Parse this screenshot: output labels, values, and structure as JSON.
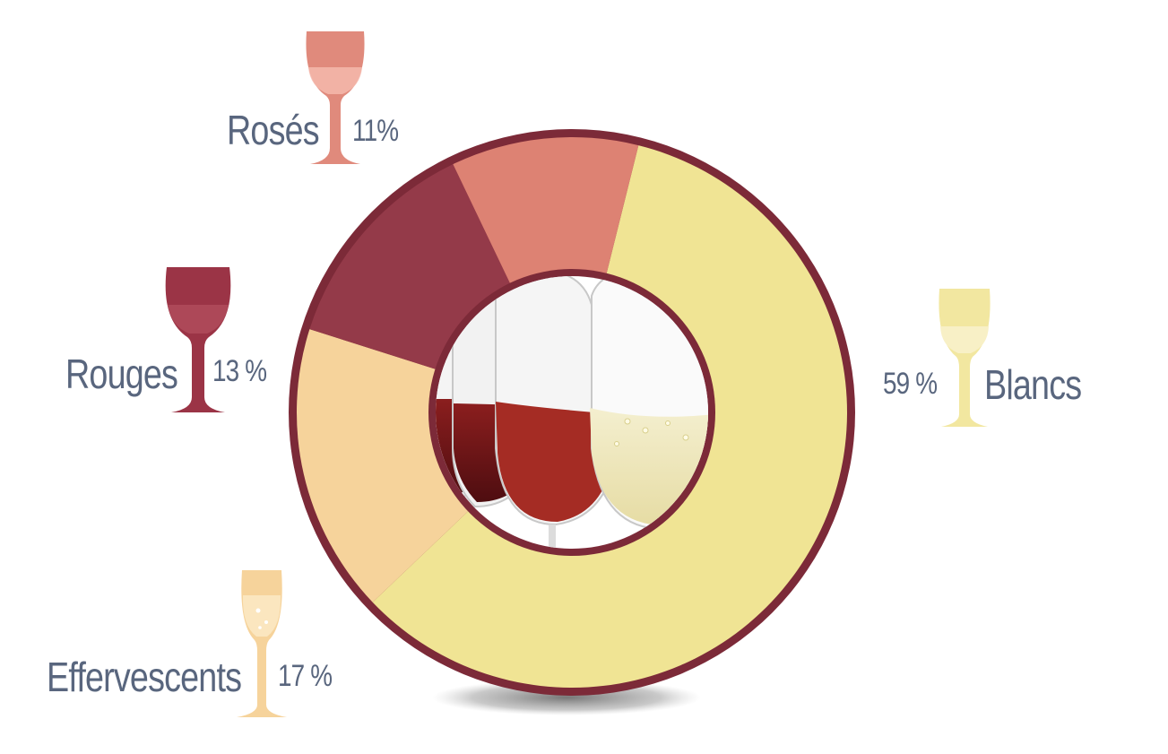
{
  "chart_data": {
    "type": "pie",
    "variant": "donut",
    "title": "",
    "categories": [
      "Blancs",
      "Effervescents",
      "Rouges",
      "Rosés"
    ],
    "values": [
      59,
      17,
      13,
      11
    ],
    "value_labels": [
      "59 %",
      "17 %",
      "13 %",
      "11%"
    ],
    "colors": [
      "#f0e494",
      "#f6d39b",
      "#943a49",
      "#dd8273"
    ],
    "glass_colors": [
      "#f2e7a0",
      "#f6d39b",
      "#9b3446",
      "#e08a7c"
    ],
    "ring_border_color": "#7c2a38",
    "center_image": "wine glasses photo",
    "start_angle_deg": 14,
    "direction": "clockwise",
    "legend": "labels placed around the ring with wine-glass icons"
  },
  "labels": {
    "roses": {
      "name": "Rosés",
      "pct": "11%"
    },
    "rouges": {
      "name": "Rouges",
      "pct": "13 %"
    },
    "effervescents": {
      "name": "Effervescents",
      "pct": "17 %"
    },
    "blancs": {
      "name": "Blancs",
      "pct": "59 %"
    }
  },
  "text_color": "#59667e"
}
